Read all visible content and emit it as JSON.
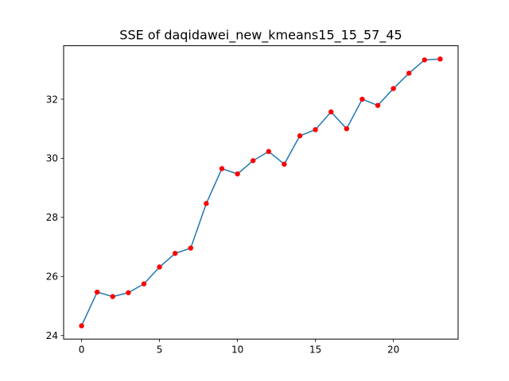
{
  "chart_data": {
    "type": "line",
    "title": "SSE of daqidawei_new_kmeans15_15_57_45",
    "xlabel": "",
    "ylabel": "",
    "x": [
      0,
      1,
      2,
      3,
      4,
      5,
      6,
      7,
      8,
      9,
      10,
      11,
      12,
      13,
      14,
      15,
      16,
      17,
      18,
      19,
      20,
      21,
      22,
      23
    ],
    "series": [
      {
        "values": [
          24.33,
          25.47,
          25.32,
          25.45,
          25.75,
          26.32,
          26.78,
          26.96,
          28.47,
          29.65,
          29.47,
          29.92,
          30.23,
          29.8,
          30.76,
          30.97,
          31.57,
          31.0,
          32.0,
          31.79,
          32.36,
          32.88,
          33.33,
          33.36
        ]
      }
    ],
    "xlim": [
      -1.15,
      24.15
    ],
    "ylim": [
      23.88,
      33.81
    ],
    "xticks": [
      0,
      5,
      10,
      15,
      20
    ],
    "yticks": [
      24,
      26,
      28,
      30,
      32
    ],
    "grid": false,
    "legend": "none",
    "colors": {
      "line": "#1f77b4",
      "marker": "#ff0000",
      "axes": "#000000",
      "background": "#ffffff"
    }
  }
}
